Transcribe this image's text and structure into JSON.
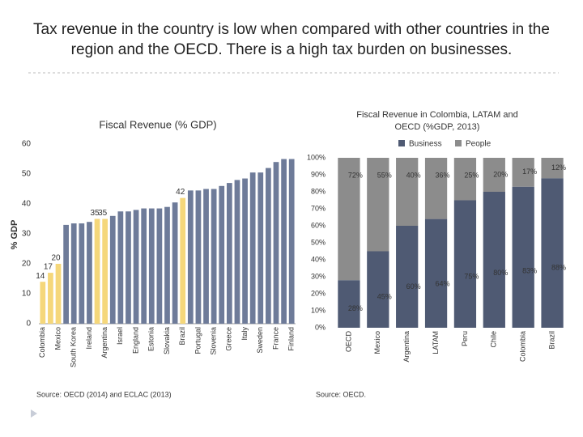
{
  "title": "Tax revenue in the country is low when compared with other countries in the region and the OECD. There is a high tax burden on businesses.",
  "chart_data": [
    {
      "type": "bar",
      "title": "Fiscal Revenue (% GDP)",
      "ylabel": "% GDP",
      "categories": [
        "Colombia",
        null,
        "Mexico",
        null,
        "South Korea",
        null,
        "Ireland",
        null,
        "Argentina",
        null,
        "Israel",
        null,
        "England",
        null,
        "Estonia",
        null,
        "Slovakia",
        null,
        "Brazil",
        null,
        "Portugal",
        null,
        "Slovenia",
        null,
        "Greece",
        null,
        "Italy",
        null,
        "Sweden",
        null,
        "France",
        null,
        "Finland"
      ],
      "values": [
        14,
        17,
        20,
        33,
        33.5,
        33.5,
        34,
        35,
        35,
        36,
        37.5,
        37.5,
        38,
        38.5,
        38.5,
        38.5,
        39,
        40.5,
        42,
        44.5,
        44.5,
        45,
        45,
        46,
        47,
        48,
        48.5,
        50.5,
        50.5,
        52,
        54,
        55,
        55
      ],
      "value_labels": [
        "14",
        "17",
        "20",
        null,
        null,
        null,
        null,
        "35",
        "35",
        null,
        null,
        null,
        null,
        null,
        null,
        null,
        null,
        null,
        "42",
        null,
        null,
        null,
        null,
        null,
        null,
        null,
        null,
        null,
        null,
        null,
        null,
        null,
        null
      ],
      "colors": [
        "#f5d77a",
        "#f5d77a",
        "#f5d77a",
        "#6e7b99",
        "#6e7b99",
        "#6e7b99",
        "#6e7b99",
        "#f5d77a",
        "#f5d77a",
        "#6e7b99",
        "#6e7b99",
        "#6e7b99",
        "#6e7b99",
        "#6e7b99",
        "#6e7b99",
        "#6e7b99",
        "#6e7b99",
        "#6e7b99",
        "#f5d77a",
        "#6e7b99",
        "#6e7b99",
        "#6e7b99",
        "#6e7b99",
        "#6e7b99",
        "#6e7b99",
        "#6e7b99",
        "#6e7b99",
        "#6e7b99",
        "#6e7b99",
        "#6e7b99",
        "#6e7b99",
        "#6e7b99",
        "#6e7b99"
      ],
      "ylim": [
        0,
        60
      ],
      "yticks": [
        0,
        10,
        20,
        30,
        40,
        50,
        60
      ],
      "source": "Source: OECD (2014) and ECLAC (2013)"
    },
    {
      "type": "stacked_bar",
      "title": "Fiscal Revenue in Colombia, LATAM and OECD (%GDP, 2013)",
      "categories": [
        "OECD",
        "Mexico",
        "Argentina",
        "LATAM",
        "Peru",
        "Chile",
        "Colombia",
        "Brazil"
      ],
      "series": [
        {
          "name": "Business",
          "color": "#4f5a73",
          "values": [
            28,
            45,
            60,
            64,
            75,
            80,
            83,
            88
          ],
          "value_labels": [
            "28%",
            "45%",
            "60%",
            "64%",
            "75%",
            "80%",
            "83%",
            "88%"
          ]
        },
        {
          "name": "People",
          "color": "#8c8c8c",
          "values": [
            72,
            55,
            40,
            36,
            25,
            20,
            17,
            12
          ],
          "value_labels": [
            "72%",
            "55%",
            "40%",
            "36%",
            "25%",
            "20%",
            "17%",
            "12%"
          ]
        }
      ],
      "ylim": [
        0,
        100
      ],
      "yticks": [
        {
          "value": 0,
          "label": "0%"
        },
        {
          "value": 10,
          "label": "10%"
        },
        {
          "value": 20,
          "label": "20%"
        },
        {
          "value": 30,
          "label": "30%"
        },
        {
          "value": 40,
          "label": "40%"
        },
        {
          "value": 50,
          "label": "50%"
        },
        {
          "value": 60,
          "label": "60%"
        },
        {
          "value": 70,
          "label": "70%"
        },
        {
          "value": 80,
          "label": "80%"
        },
        {
          "value": 90,
          "label": "90%"
        },
        {
          "value": 100,
          "label": "100%"
        }
      ],
      "legend": "top-right",
      "source": "Source: OECD."
    }
  ]
}
